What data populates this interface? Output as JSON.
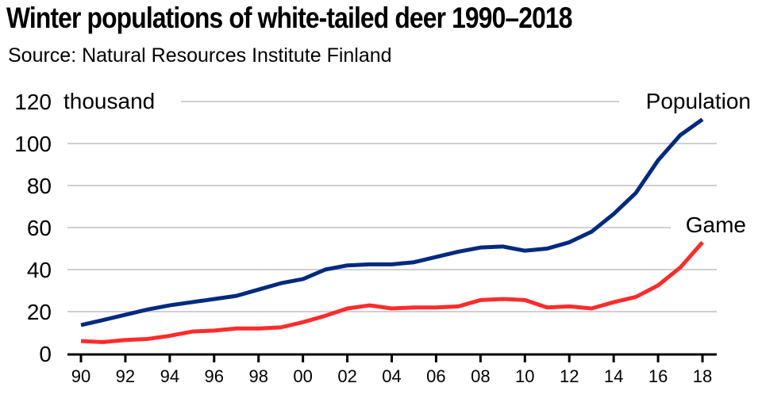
{
  "title": "Winter populations of white-tailed deer 1990–2018",
  "subtitle": "Source: Natural Resources Institute Finland",
  "chart_data": {
    "type": "line",
    "title": "Winter populations of white-tailed deer 1990–2018",
    "subtitle": "Source: Natural Resources Institute Finland",
    "ylabel": "thousand",
    "ylim": [
      0,
      120
    ],
    "yticks": [
      0,
      20,
      40,
      60,
      80,
      100,
      120
    ],
    "grid": true,
    "x": [
      1990,
      1991,
      1992,
      1993,
      1994,
      1995,
      1996,
      1997,
      1998,
      1999,
      2000,
      2001,
      2002,
      2003,
      2004,
      2005,
      2006,
      2007,
      2008,
      2009,
      2010,
      2011,
      2012,
      2013,
      2014,
      2015,
      2016,
      2017,
      2018
    ],
    "xtick_labels": [
      "90",
      "92",
      "94",
      "96",
      "98",
      "00",
      "02",
      "04",
      "06",
      "08",
      "10",
      "12",
      "14",
      "16",
      "18"
    ],
    "series": [
      {
        "name": "Population",
        "color": "#002a7f",
        "values": [
          13.6,
          16,
          18.5,
          21,
          23,
          24.5,
          26,
          27.5,
          30.5,
          33.5,
          35.5,
          40,
          42,
          42.5,
          42.5,
          43.5,
          46,
          48.5,
          50.5,
          51,
          49,
          50,
          53,
          58,
          66.5,
          76.5,
          92,
          104,
          111.5
        ]
      },
      {
        "name": "Game",
        "color": "#ff2b2b",
        "values": [
          6,
          5.5,
          6.5,
          7,
          8.5,
          10.5,
          11,
          12,
          12,
          12.5,
          15,
          18,
          21.5,
          23,
          21.5,
          22,
          22,
          22.5,
          25.5,
          26,
          25.5,
          22,
          22.5,
          21.5,
          24.5,
          27,
          32.5,
          41,
          53
        ]
      }
    ]
  }
}
